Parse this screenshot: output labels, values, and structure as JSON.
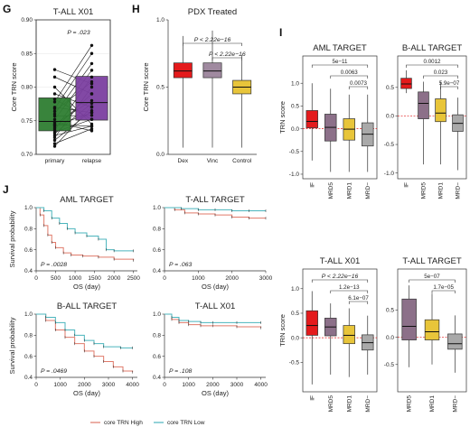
{
  "colors": {
    "green": "#2e7d32",
    "purple": "#7b3fa0",
    "red": "#e41a1c",
    "mauve": "#8c7089",
    "mauve_light": "#a08aa0",
    "yellow": "#e8c53a",
    "gray": "#a9a9a9",
    "km_high": "#e07a6a",
    "km_low": "#4bb5bd"
  },
  "chart_data": [
    {
      "panel": "G",
      "type": "box",
      "title": "T-ALL X01",
      "ylabel": "Core TRN score",
      "ylim": [
        0.7,
        0.9
      ],
      "yticks": [
        "0.70",
        "0.75",
        "0.80",
        "0.85",
        "0.90"
      ],
      "categories": [
        "primary",
        "relapse"
      ],
      "boxes": [
        {
          "name": "primary",
          "q1": 0.735,
          "median": 0.749,
          "q3": 0.784
        },
        {
          "name": "relapse",
          "q1": 0.751,
          "median": 0.777,
          "q3": 0.816
        }
      ],
      "annotation": "P = .023",
      "paired": [
        [
          0.76,
          0.835
        ],
        [
          0.764,
          0.808
        ],
        [
          0.752,
          0.825
        ],
        [
          0.745,
          0.78
        ],
        [
          0.742,
          0.762
        ],
        [
          0.748,
          0.735
        ],
        [
          0.736,
          0.815
        ],
        [
          0.739,
          0.79
        ],
        [
          0.733,
          0.752
        ],
        [
          0.731,
          0.776
        ],
        [
          0.728,
          0.742
        ],
        [
          0.725,
          0.8
        ],
        [
          0.721,
          0.765
        ],
        [
          0.716,
          0.738
        ],
        [
          0.712,
          0.771
        ],
        [
          0.782,
          0.752
        ],
        [
          0.79,
          0.77
        ],
        [
          0.8,
          0.745
        ],
        [
          0.815,
          0.79
        ],
        [
          0.826,
          0.805
        ],
        [
          0.768,
          0.85
        ],
        [
          0.77,
          0.762
        ],
        [
          0.757,
          0.758
        ],
        [
          0.744,
          0.742
        ],
        [
          0.778,
          0.862
        ]
      ]
    },
    {
      "panel": "H",
      "type": "box",
      "title": "PDX Treated",
      "ylabel": "Core TRN score",
      "ylim": [
        0.0,
        1.0
      ],
      "yticks": [
        "0.0",
        "0.5",
        "1.0"
      ],
      "categories": [
        "Dex",
        "Vinc",
        "Control"
      ],
      "boxes": [
        {
          "name": "Dex",
          "min": 0.05,
          "q1": 0.57,
          "median": 0.62,
          "q3": 0.68,
          "max": 0.88
        },
        {
          "name": "Vinc",
          "min": 0.05,
          "q1": 0.57,
          "median": 0.62,
          "q3": 0.68,
          "max": 0.92
        },
        {
          "name": "Control",
          "min": 0.05,
          "q1": 0.45,
          "median": 0.5,
          "q3": 0.55,
          "max": 0.74
        }
      ],
      "comparisons": [
        "P < 2.22e−16",
        "P < 2.22e−16"
      ]
    },
    {
      "panel": "I",
      "type": "box",
      "title": "AML TARGET",
      "ylabel": "TRN score",
      "ylim": [
        -1.1,
        1.6
      ],
      "yticks": [
        "-1.0",
        "-0.5",
        "0.0",
        "0.5",
        "1.0"
      ],
      "categories": [
        "IF",
        "MRD5",
        "MRD1",
        "MRD−"
      ],
      "boxes": [
        {
          "name": "IF",
          "min": -0.7,
          "q1": 0.02,
          "median": 0.16,
          "q3": 0.4,
          "max": 1.0
        },
        {
          "name": "MRD5",
          "min": -0.95,
          "q1": -0.27,
          "median": 0.03,
          "q3": 0.32,
          "max": 0.88
        },
        {
          "name": "MRD1",
          "min": -0.95,
          "q1": -0.25,
          "median": -0.01,
          "q3": 0.22,
          "max": 0.75
        },
        {
          "name": "MRD−",
          "min": -0.95,
          "q1": -0.38,
          "median": -0.12,
          "q3": 0.13,
          "max": 0.75
        }
      ],
      "comparisons": [
        "5e−11",
        "0.0063",
        "0.0073"
      ]
    },
    {
      "panel": "I",
      "type": "box",
      "title": "B-ALL TARGET",
      "ylabel": "",
      "ylim": [
        -1.1,
        1.05
      ],
      "yticks": [
        "-1.0",
        "-0.5",
        "0.0",
        "0.5"
      ],
      "categories": [
        "IF",
        "MRD5",
        "MRD1",
        "MRD−"
      ],
      "boxes": [
        {
          "name": "IF",
          "min": 0.4,
          "q1": 0.48,
          "median": 0.56,
          "q3": 0.66,
          "max": 0.8
        },
        {
          "name": "MRD5",
          "min": -0.85,
          "q1": -0.05,
          "median": 0.22,
          "q3": 0.42,
          "max": 0.6
        },
        {
          "name": "MRD1",
          "min": -0.85,
          "q1": -0.1,
          "median": 0.05,
          "q3": 0.3,
          "max": 0.6
        },
        {
          "name": "MRD−",
          "min": -0.95,
          "q1": -0.27,
          "median": -0.13,
          "q3": 0.02,
          "max": 0.32
        }
      ],
      "comparisons": [
        "0.0012",
        "0.023",
        "5.9e−07"
      ]
    },
    {
      "panel": "I",
      "type": "box",
      "title": "T-ALL X01",
      "ylabel": "TRN score",
      "ylim": [
        -1.1,
        1.4
      ],
      "yticks": [
        "-0.5",
        "0.0",
        "0.5",
        "1.0"
      ],
      "categories": [
        "IF",
        "MRD5",
        "MRD1",
        "MRD−"
      ],
      "boxes": [
        {
          "name": "IF",
          "min": -0.95,
          "q1": 0.05,
          "median": 0.25,
          "q3": 0.55,
          "max": 0.95
        },
        {
          "name": "MRD5",
          "min": -0.75,
          "q1": 0.04,
          "median": 0.22,
          "q3": 0.4,
          "max": 0.7
        },
        {
          "name": "MRD1",
          "min": -0.8,
          "q1": -0.12,
          "median": 0.05,
          "q3": 0.25,
          "max": 0.6
        },
        {
          "name": "MRD−",
          "min": -0.75,
          "q1": -0.25,
          "median": -0.1,
          "q3": 0.06,
          "max": 0.45
        }
      ],
      "comparisons": [
        "P < 2.22e−16",
        "1.2e−13",
        "6.1e−07"
      ]
    },
    {
      "panel": "I",
      "type": "box",
      "title": "T-ALL TARGET",
      "ylabel": "",
      "ylim": [
        -1.0,
        1.25
      ],
      "yticks": [
        "-0.5",
        "0.0",
        "0.5"
      ],
      "categories": [
        "MRD5",
        "MRD1",
        "MRD−"
      ],
      "boxes": [
        {
          "name": "MRD5",
          "min": -0.55,
          "q1": -0.05,
          "median": 0.2,
          "q3": 0.7,
          "max": 0.95
        },
        {
          "name": "MRD1",
          "min": -0.5,
          "q1": -0.05,
          "median": 0.1,
          "q3": 0.32,
          "max": 0.8
        },
        {
          "name": "MRD−",
          "min": -0.65,
          "q1": -0.22,
          "median": -0.12,
          "q3": 0.06,
          "max": 0.4
        }
      ],
      "comparisons": [
        "5e−07",
        "1.7e−05"
      ]
    },
    {
      "panel": "J",
      "type": "line",
      "title": "AML TARGET",
      "xlabel": "OS (day)",
      "ylabel": "Survival probability",
      "xlim": [
        0,
        2600
      ],
      "ylim": [
        0.4,
        1.0
      ],
      "xticks": [
        "0",
        "500",
        "1000",
        "1500",
        "2000",
        "2500"
      ],
      "yticks": [
        "0.4",
        "0.6",
        "0.8",
        "1.0"
      ],
      "annotation": "P = .0028",
      "series": [
        {
          "name": "core TRN High",
          "x": [
            0,
            100,
            200,
            300,
            400,
            500,
            700,
            900,
            1200,
            1600,
            2000,
            2500
          ],
          "y": [
            1.0,
            0.93,
            0.83,
            0.74,
            0.67,
            0.62,
            0.57,
            0.55,
            0.54,
            0.53,
            0.51,
            0.5
          ]
        },
        {
          "name": "core TRN Low",
          "x": [
            0,
            200,
            400,
            600,
            800,
            1000,
            1300,
            1600,
            1800,
            2000,
            2500
          ],
          "y": [
            1.0,
            0.97,
            0.9,
            0.85,
            0.8,
            0.76,
            0.73,
            0.7,
            0.6,
            0.59,
            0.59
          ]
        }
      ]
    },
    {
      "panel": "J",
      "type": "line",
      "title": "T-ALL TARGET",
      "xlabel": "OS (day)",
      "ylabel": "",
      "xlim": [
        0,
        3000
      ],
      "ylim": [
        0.4,
        1.0
      ],
      "xticks": [
        "0",
        "1000",
        "2000",
        "3000"
      ],
      "yticks": [
        "0.4",
        "0.6",
        "0.8",
        "1.0"
      ],
      "annotation": "P = .063",
      "series": [
        {
          "name": "core TRN High",
          "x": [
            0,
            300,
            600,
            1000,
            1500,
            2000,
            2500,
            3000
          ],
          "y": [
            1.0,
            0.98,
            0.95,
            0.94,
            0.93,
            0.91,
            0.9,
            0.9
          ]
        },
        {
          "name": "core TRN Low",
          "x": [
            0,
            500,
            1000,
            1500,
            2000,
            2500,
            3000
          ],
          "y": [
            1.0,
            0.99,
            0.98,
            0.98,
            0.97,
            0.97,
            0.97
          ]
        }
      ]
    },
    {
      "panel": "J",
      "type": "line",
      "title": "B-ALL TARGET",
      "xlabel": "OS (day)",
      "ylabel": "Survival probability",
      "xlim": [
        0,
        4200
      ],
      "ylim": [
        0.4,
        1.0
      ],
      "xticks": [
        "0",
        "1000",
        "2000",
        "3000",
        "4000"
      ],
      "yticks": [
        "0.4",
        "0.6",
        "0.8",
        "1.0"
      ],
      "annotation": "P = .0469",
      "series": [
        {
          "name": "core TRN High",
          "x": [
            0,
            400,
            800,
            1200,
            1600,
            2000,
            2400,
            2800,
            3200,
            3600,
            4000
          ],
          "y": [
            1.0,
            0.94,
            0.85,
            0.78,
            0.72,
            0.65,
            0.6,
            0.55,
            0.5,
            0.46,
            0.45
          ]
        },
        {
          "name": "core TRN Low",
          "x": [
            0,
            400,
            800,
            1200,
            1600,
            2000,
            2400,
            2800,
            3500,
            4000
          ],
          "y": [
            1.0,
            0.97,
            0.92,
            0.85,
            0.8,
            0.75,
            0.72,
            0.69,
            0.68,
            0.68
          ]
        }
      ]
    },
    {
      "panel": "J",
      "type": "line",
      "title": "T-ALL X01",
      "xlabel": "OS (day)",
      "ylabel": "",
      "xlim": [
        0,
        4200
      ],
      "ylim": [
        0.4,
        1.0
      ],
      "xticks": [
        "0",
        "1000",
        "2000",
        "3000",
        "4000"
      ],
      "yticks": [
        "0.4",
        "0.6",
        "0.8",
        "1.0"
      ],
      "annotation": "P = .108",
      "series": [
        {
          "name": "core TRN High",
          "x": [
            0,
            300,
            600,
            1000,
            1500,
            2000,
            3000,
            4000
          ],
          "y": [
            1.0,
            0.95,
            0.92,
            0.9,
            0.89,
            0.89,
            0.88,
            0.87
          ]
        },
        {
          "name": "core TRN Low",
          "x": [
            0,
            300,
            600,
            1000,
            1500,
            2000,
            3000,
            4000
          ],
          "y": [
            1.0,
            0.97,
            0.94,
            0.93,
            0.92,
            0.92,
            0.92,
            0.92
          ]
        }
      ]
    }
  ],
  "labels": {
    "panel_g": "G",
    "panel_h": "H",
    "panel_i": "I",
    "panel_j": "J",
    "legend_high": "core TRN High",
    "legend_low": "core TRN Low"
  }
}
